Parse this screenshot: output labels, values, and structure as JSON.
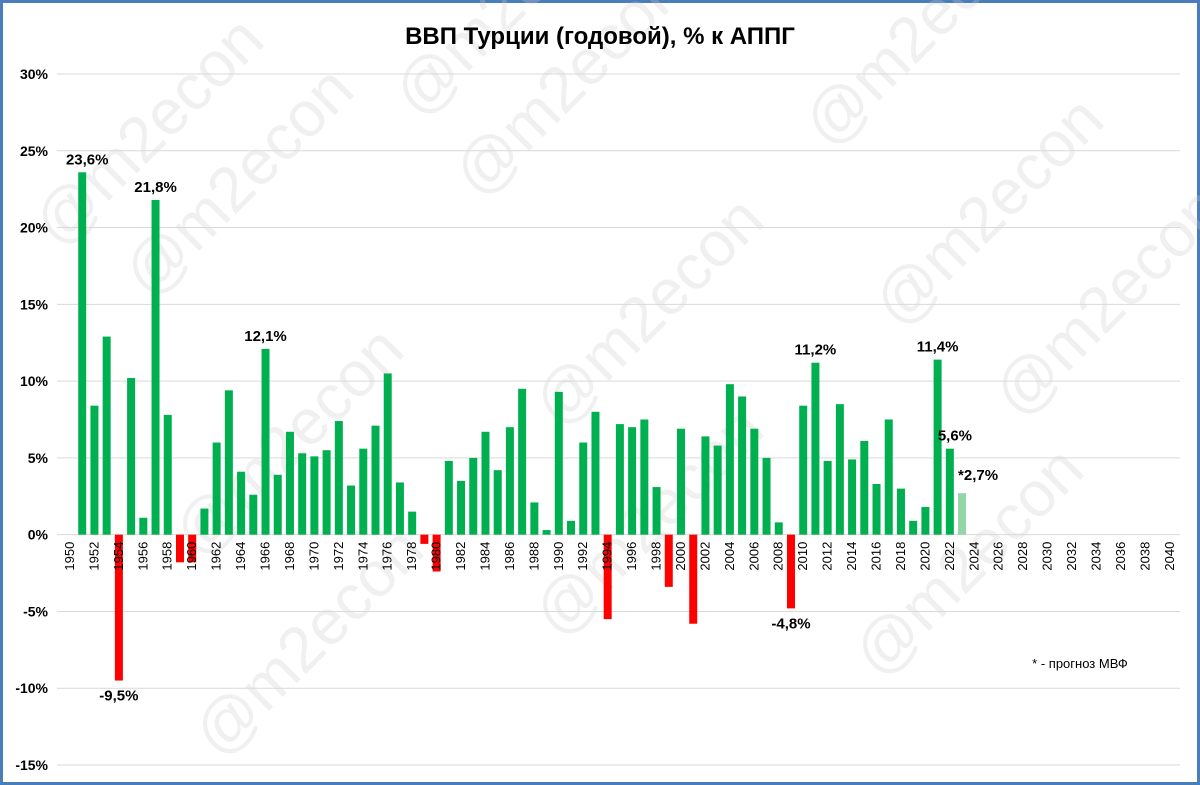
{
  "chart_data": {
    "type": "bar",
    "title": "ВВП Турции (годовой), % к АППГ",
    "xlabel": "",
    "ylabel": "",
    "ylim": [
      -15,
      30
    ],
    "ytick_step": 5,
    "y_unit": "%",
    "grid": "horizontal",
    "x_range": [
      1950,
      2040
    ],
    "x_tick_step": 2,
    "note": "* - прогноз МВФ",
    "watermark": "@m2econ",
    "colors": {
      "positive": "#00b050",
      "negative": "#ff0000",
      "forecast": "#92d6a8",
      "frame": "#4a7ebb",
      "grid": "#d9d9d9"
    },
    "categories": [
      1950,
      1951,
      1952,
      1953,
      1954,
      1955,
      1956,
      1957,
      1958,
      1959,
      1960,
      1961,
      1962,
      1963,
      1964,
      1965,
      1966,
      1967,
      1968,
      1969,
      1970,
      1971,
      1972,
      1973,
      1974,
      1975,
      1976,
      1977,
      1978,
      1979,
      1980,
      1981,
      1982,
      1983,
      1984,
      1985,
      1986,
      1987,
      1988,
      1989,
      1990,
      1991,
      1992,
      1993,
      1994,
      1995,
      1996,
      1997,
      1998,
      1999,
      2000,
      2001,
      2002,
      2003,
      2004,
      2005,
      2006,
      2007,
      2008,
      2009,
      2010,
      2011,
      2012,
      2013,
      2014,
      2015,
      2016,
      2017,
      2018,
      2019,
      2020,
      2021,
      2022,
      2023
    ],
    "values": [
      null,
      23.6,
      8.4,
      12.9,
      -9.5,
      10.2,
      1.1,
      21.8,
      7.8,
      -1.8,
      -1.8,
      1.7,
      6.0,
      9.4,
      4.1,
      2.6,
      12.1,
      3.9,
      6.7,
      5.3,
      5.1,
      5.5,
      7.4,
      3.2,
      5.6,
      7.1,
      10.5,
      3.4,
      1.5,
      -0.6,
      -2.4,
      4.8,
      3.5,
      5.0,
      6.7,
      4.2,
      7.0,
      9.5,
      2.1,
      0.3,
      9.3,
      0.9,
      6.0,
      8.0,
      -5.5,
      7.2,
      7.0,
      7.5,
      3.1,
      -3.4,
      6.9,
      -5.8,
      6.4,
      5.8,
      9.8,
      9.0,
      6.9,
      5.0,
      0.8,
      -4.8,
      8.4,
      11.2,
      4.8,
      8.5,
      4.9,
      6.1,
      3.3,
      7.5,
      3.0,
      0.9,
      1.8,
      11.4,
      5.6,
      2.7
    ],
    "forecast_years": [
      2023
    ],
    "data_labels": [
      {
        "year": 1951,
        "text": "23,6%"
      },
      {
        "year": 1954,
        "text": "-9,5%"
      },
      {
        "year": 1957,
        "text": "21,8%"
      },
      {
        "year": 1966,
        "text": "12,1%"
      },
      {
        "year": 2009,
        "text": "-4,8%"
      },
      {
        "year": 2011,
        "text": "11,2%"
      },
      {
        "year": 2021,
        "text": "11,4%"
      },
      {
        "year": 2022,
        "text": "5,6%"
      },
      {
        "year": 2023,
        "text": "*2,7%"
      }
    ]
  }
}
